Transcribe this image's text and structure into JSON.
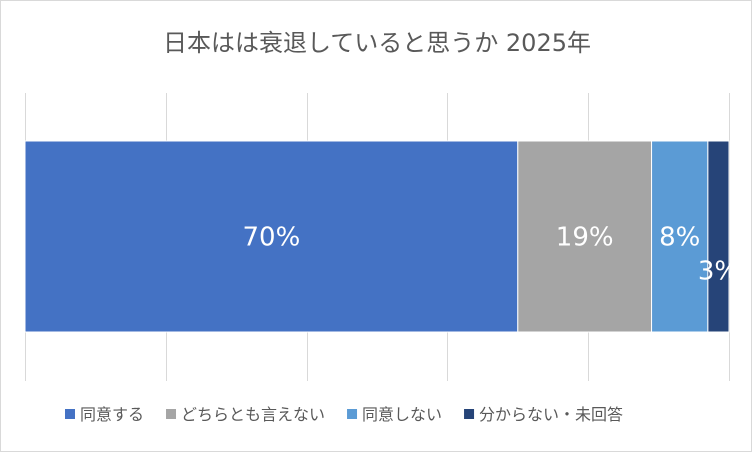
{
  "chart_data": {
    "type": "bar",
    "orientation": "horizontal",
    "stacked": "100%",
    "title": "日本はは衰退していると思うか 2025年",
    "categories": [
      ""
    ],
    "xlim": [
      0,
      100
    ],
    "grid": true,
    "legend": "bottom",
    "series": [
      {
        "name": "同意する",
        "values": [
          70
        ],
        "label": "70%",
        "color": "#4472c4"
      },
      {
        "name": "どちらとも言えない",
        "values": [
          19
        ],
        "label": "19%",
        "color": "#a5a5a5"
      },
      {
        "name": "同意しない",
        "values": [
          8
        ],
        "label": "8%",
        "color": "#5b9bd5"
      },
      {
        "name": "分からない・未回答",
        "values": [
          3
        ],
        "label": "3%",
        "color": "#264478"
      }
    ]
  }
}
